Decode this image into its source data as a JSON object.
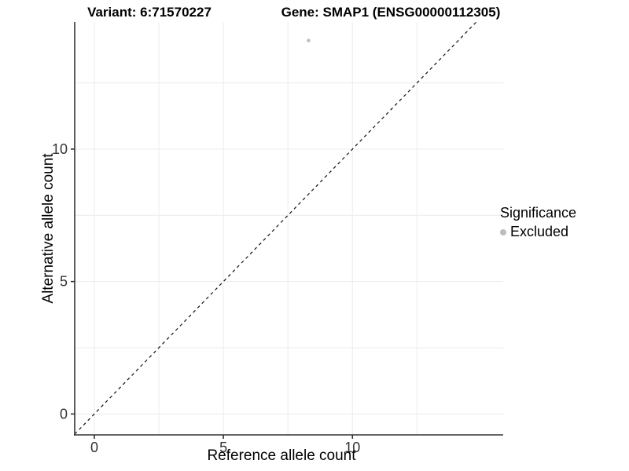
{
  "titles": {
    "left": "Variant: 6:71570227",
    "right": "Gene: SMAP1 (ENSG00000112305)"
  },
  "chart_data": {
    "type": "scatter",
    "title": "Variant: 6:71570227 — Gene: SMAP1 (ENSG00000112305)",
    "xlabel": "Reference allele count",
    "ylabel": "Alternative allele count",
    "x_ticks": [
      0,
      5,
      10
    ],
    "y_ticks": [
      0,
      5,
      10
    ],
    "x_minor_ticks": [
      2.5,
      7.5,
      12.5
    ],
    "y_minor_ticks": [
      2.5,
      7.5,
      12.5
    ],
    "xlim": [
      -0.76,
      15.84
    ],
    "ylim": [
      -0.79,
      14.8
    ],
    "grid": "on",
    "series": [
      {
        "name": "Excluded",
        "color": "#bdbdbd",
        "points": [
          {
            "x": 8.3,
            "y": 14.1
          }
        ]
      }
    ],
    "reference_line": {
      "name": "identity-line",
      "slope": 1,
      "intercept": 0,
      "style": "dashed",
      "color": "#111111"
    },
    "legend": {
      "title": "Significance",
      "position": "right",
      "entries": [
        {
          "label": "Excluded",
          "color": "#bdbdbd"
        }
      ]
    }
  },
  "colors": {
    "background": "#ffffff",
    "grid": "#ececec",
    "axis": "#333333",
    "point": "#bdbdbd",
    "text": "#000000"
  }
}
